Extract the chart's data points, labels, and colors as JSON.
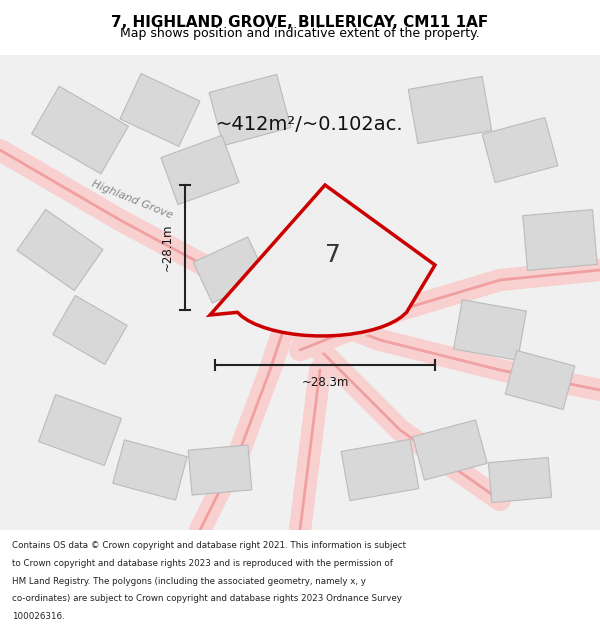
{
  "title_line1": "7, HIGHLAND GROVE, BILLERICAY, CM11 1AF",
  "title_line2": "Map shows position and indicative extent of the property.",
  "area_text": "~412m²/~0.102ac.",
  "plot_label": "7",
  "dim_vertical": "~28.1m",
  "dim_horizontal": "~28.3m",
  "street_label": "Highland Grove",
  "footer_text": "Contains OS data © Crown copyright and database right 2021. This information is subject to Crown copyright and database rights 2023 and is reproduced with the permission of HM Land Registry. The polygons (including the associated geometry, namely x, y co-ordinates) are subject to Crown copyright and database rights 2023 Ordnance Survey 100026316.",
  "bg_color": "#f5f5f5",
  "map_bg_color": "#f0f0f0",
  "plot_color": "#cc0000",
  "plot_fill": "#f0f0f0",
  "building_color": "#d8d8d8",
  "building_edge_color": "#bbbbbb",
  "road_color": "#f5b8b8",
  "road_edge_color": "#e88888",
  "dim_line_color": "#222222",
  "title_bg": "#ffffff",
  "footer_bg": "#ffffff"
}
